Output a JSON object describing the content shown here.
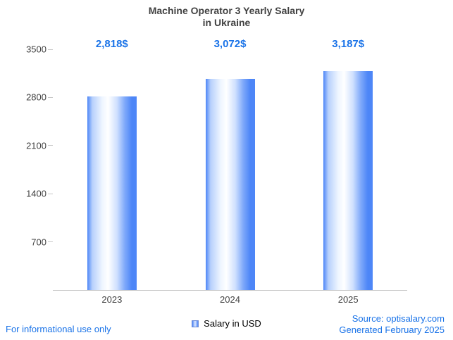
{
  "title": {
    "line1": "Machine Operator 3 Yearly Salary",
    "line2": "in Ukraine"
  },
  "chart_data": {
    "type": "bar",
    "title": "Machine Operator 3 Yearly Salary in Ukraine",
    "categories": [
      "2023",
      "2024",
      "2025"
    ],
    "series": [
      {
        "name": "Salary in USD",
        "values": [
          2818,
          3072,
          3187
        ]
      }
    ],
    "value_labels": [
      "2,818$",
      "3,072$",
      "3,187$"
    ],
    "y_ticks": [
      700,
      1400,
      2100,
      2800,
      3500
    ],
    "ylim": [
      0,
      3500
    ],
    "xlabel": "",
    "ylabel": "",
    "grid": false,
    "legend_position": "bottom",
    "bar_color": "#4d86f7",
    "value_label_color": "#1a73e8"
  },
  "footer": {
    "left": "For informational use only",
    "source": "Source: optisalary.com",
    "generated": "Generated February 2025"
  },
  "colors": {
    "accent_blue": "#1a73e8",
    "axis_line": "#c8c8c8",
    "text": "#424242"
  }
}
